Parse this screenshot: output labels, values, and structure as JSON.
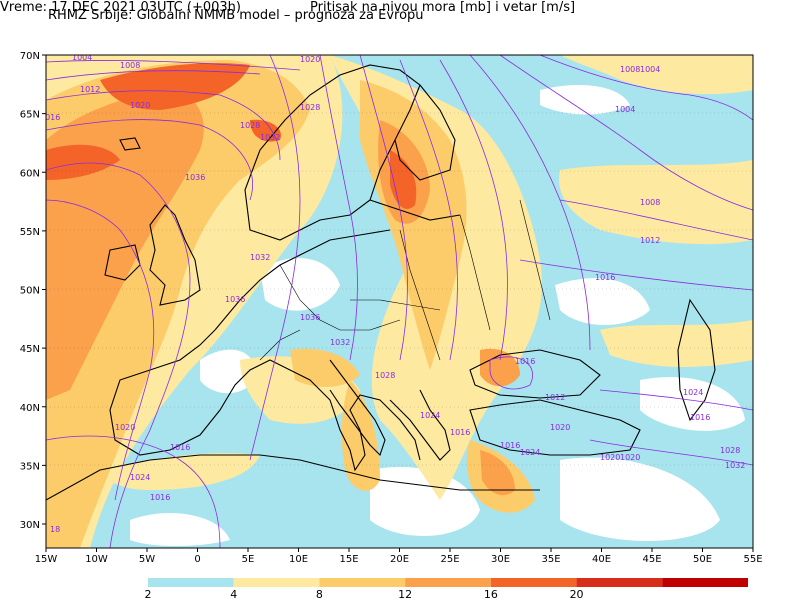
{
  "header": {
    "title": "RHMZ Srbije: Globalni NMMB model – prognoza za Evropu",
    "time": "Vreme: 17 DEC 2021 03UTC (+003h)",
    "field": "Pritisak na nivou mora [mb] i vetar [m/s]"
  },
  "map": {
    "lon_ticks": [
      "15W",
      "10W",
      "5W",
      "0",
      "5E",
      "10E",
      "15E",
      "20E",
      "25E",
      "30E",
      "35E",
      "40E",
      "45E",
      "50E",
      "55E"
    ],
    "lat_ticks": [
      "70N",
      "65N",
      "60N",
      "55N",
      "50N",
      "45N",
      "40N",
      "35N",
      "30N"
    ],
    "isobar_labels": [
      "1004",
      "1008",
      "1012",
      "1016",
      "1020",
      "1024",
      "1028",
      "1032",
      "1036",
      "1020",
      "1020",
      "1016",
      "1016",
      "1008",
      "1004",
      "1008",
      "1012",
      "1016",
      "1016",
      "1020",
      "1024",
      "1020",
      "1024",
      "1028",
      "1032",
      "1032",
      "1036",
      "1036",
      "1032",
      "1028",
      "1024",
      "1016",
      "1020",
      "1016",
      "1004",
      "1012",
      "1016",
      "1028",
      "18"
    ],
    "isobar_color": "#8a2be2",
    "coast_color": "#000000",
    "sea_color": "#ffffff"
  },
  "colorbar": {
    "labels": [
      "2",
      "4",
      "8",
      "12",
      "16",
      "20"
    ],
    "colors": [
      "#a8e4ee",
      "#fde9a0",
      "#fdcc6a",
      "#fba14c",
      "#f46428",
      "#d72d1a",
      "#c00000"
    ]
  }
}
